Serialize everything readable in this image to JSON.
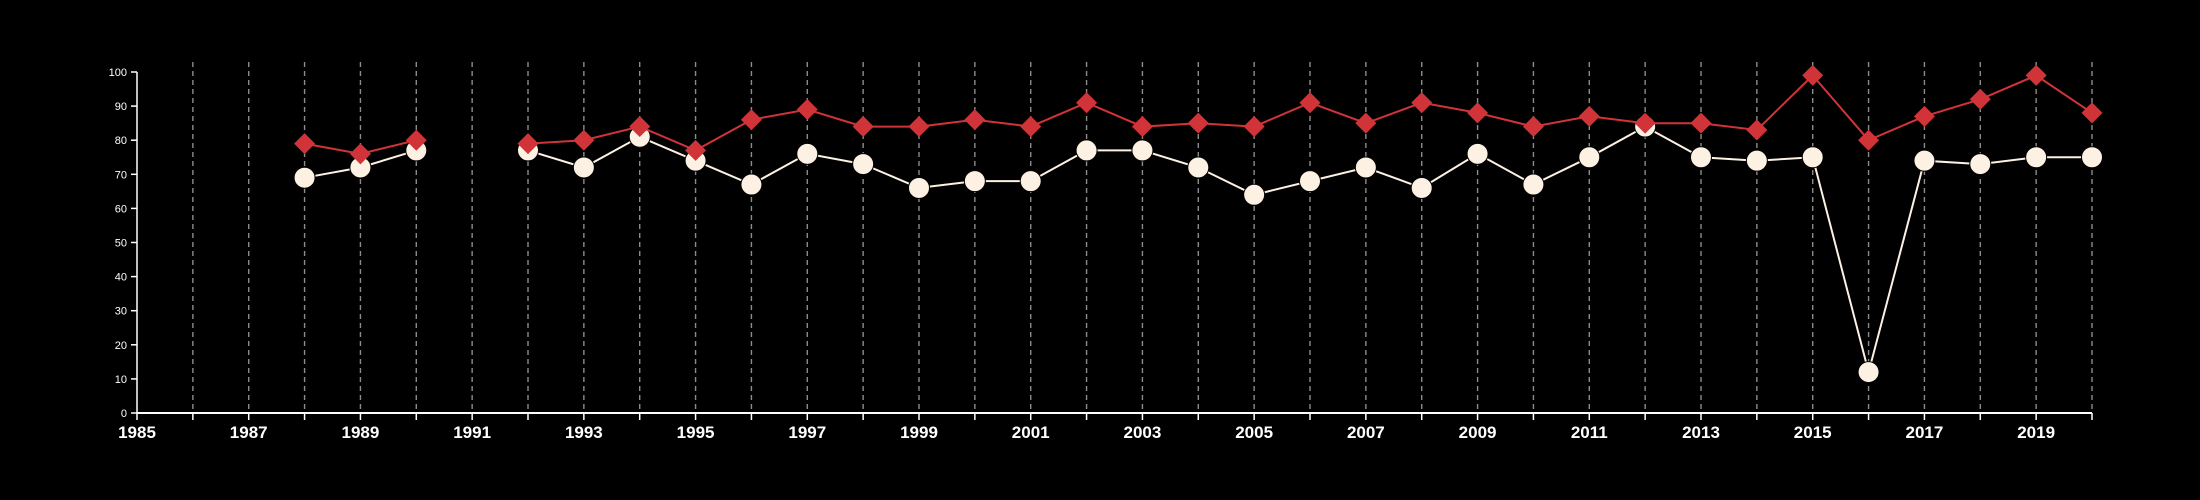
{
  "chart_data": {
    "type": "line",
    "title": "",
    "xlabel": "",
    "ylabel": "",
    "xlim": [
      1985,
      2020
    ],
    "ylim": [
      0,
      100
    ],
    "x_ticks_labeled": [
      1985,
      1987,
      1989,
      1991,
      1993,
      1995,
      1997,
      1999,
      2001,
      2003,
      2005,
      2007,
      2009,
      2011,
      2013,
      2015,
      2017,
      2019
    ],
    "y_ticks": [
      0,
      10,
      20,
      30,
      40,
      50,
      60,
      70,
      80,
      90,
      100
    ],
    "vertical_gridlines": "dashed, every year",
    "legend": "none",
    "series": [
      {
        "color": "#d13438",
        "marker": "diamond",
        "points": [
          [
            1988,
            79
          ],
          [
            1989,
            76
          ],
          [
            1990,
            80
          ],
          [
            1992,
            79
          ],
          [
            1993,
            80
          ],
          [
            1994,
            84
          ],
          [
            1995,
            77
          ],
          [
            1996,
            86
          ],
          [
            1997,
            89
          ],
          [
            1998,
            84
          ],
          [
            1999,
            84
          ],
          [
            2000,
            86
          ],
          [
            2001,
            84
          ],
          [
            2002,
            91
          ],
          [
            2003,
            84
          ],
          [
            2004,
            85
          ],
          [
            2005,
            84
          ],
          [
            2006,
            91
          ],
          [
            2007,
            85
          ],
          [
            2008,
            91
          ],
          [
            2009,
            88
          ],
          [
            2010,
            84
          ],
          [
            2011,
            87
          ],
          [
            2012,
            85
          ],
          [
            2013,
            85
          ],
          [
            2014,
            83
          ],
          [
            2015,
            99
          ],
          [
            2016,
            80
          ],
          [
            2017,
            87
          ],
          [
            2018,
            92
          ],
          [
            2019,
            99
          ],
          [
            2020,
            88
          ]
        ]
      },
      {
        "color": "#fdf1e3",
        "marker": "circle",
        "points": [
          [
            1988,
            69
          ],
          [
            1989,
            72
          ],
          [
            1990,
            77
          ],
          [
            1992,
            77
          ],
          [
            1993,
            72
          ],
          [
            1994,
            81
          ],
          [
            1995,
            74
          ],
          [
            1996,
            67
          ],
          [
            1997,
            76
          ],
          [
            1998,
            73
          ],
          [
            1999,
            66
          ],
          [
            2000,
            68
          ],
          [
            2001,
            68
          ],
          [
            2002,
            77
          ],
          [
            2003,
            77
          ],
          [
            2004,
            72
          ],
          [
            2005,
            64
          ],
          [
            2006,
            68
          ],
          [
            2007,
            72
          ],
          [
            2008,
            66
          ],
          [
            2009,
            76
          ],
          [
            2010,
            67
          ],
          [
            2011,
            75
          ],
          [
            2012,
            84
          ],
          [
            2013,
            75
          ],
          [
            2014,
            74
          ],
          [
            2015,
            75
          ],
          [
            2016,
            12
          ],
          [
            2017,
            74
          ],
          [
            2018,
            73
          ],
          [
            2019,
            75
          ],
          [
            2020,
            75
          ]
        ]
      }
    ]
  }
}
